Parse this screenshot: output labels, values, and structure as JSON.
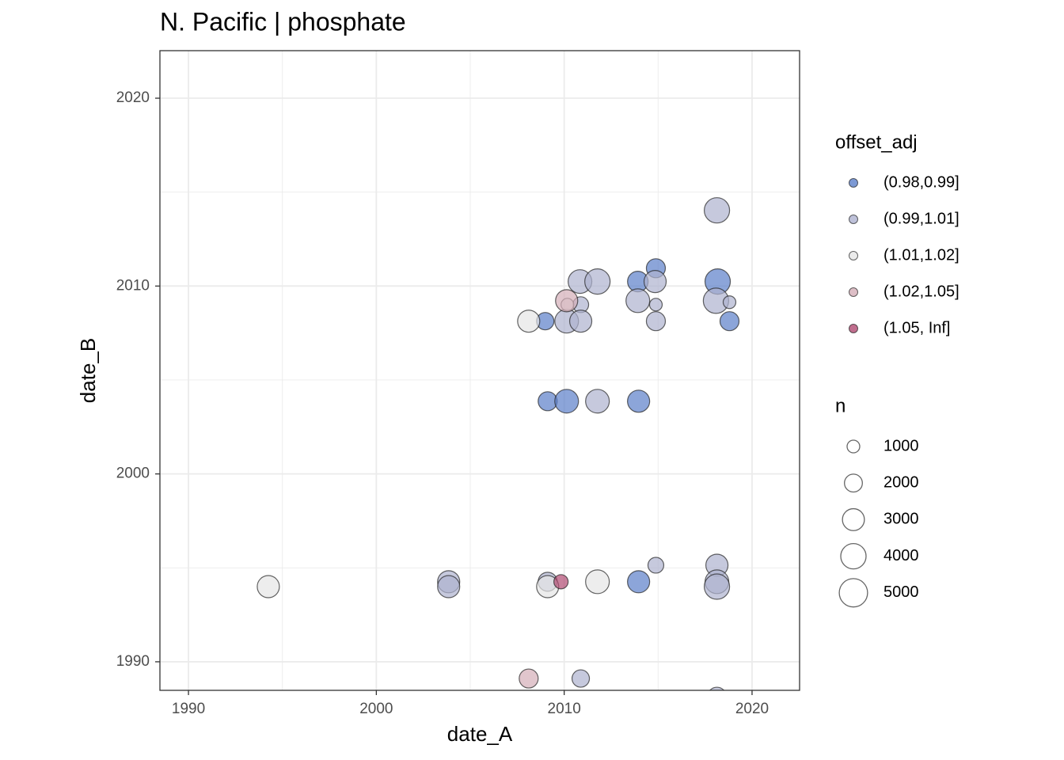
{
  "chart_data": {
    "type": "scatter",
    "title": "N. Pacific | phosphate",
    "xlabel": "date_A",
    "ylabel": "date_B",
    "xlim": [
      1988.48,
      2022.53
    ],
    "ylim": [
      1988.48,
      2022.53
    ],
    "xticks": [
      1990,
      2000,
      2010,
      2020
    ],
    "yticks": [
      1990,
      2000,
      2010,
      2020
    ],
    "xminor": [
      1995,
      2005,
      2015
    ],
    "yminor": [
      1995,
      2005,
      2015
    ],
    "grid": true,
    "legend_title": "offset_adj",
    "series": [
      {
        "name": "(0.98,0.99]",
        "color": "#5b7fc9",
        "x": [
          2008.99,
          2009.12,
          2010.13,
          2013.96,
          2013.92,
          2014.88,
          2018.17,
          2018.8,
          2013.96
        ],
        "y": [
          2008.13,
          2003.87,
          2003.87,
          2003.87,
          2010.24,
          2010.95,
          2010.24,
          2008.13,
          1994.26
        ],
        "sizes": [
          1890,
          2250,
          3500,
          3060,
          2640,
          2250,
          4000,
          2250,
          3060
        ]
      },
      {
        "name": "(0.99,1.01]",
        "color": "#aeb2cf",
        "x": [
          2018.13,
          2010.84,
          2011.77,
          2014.84,
          2010.88,
          2013.92,
          2014.88,
          2018.08,
          2018.8,
          2010.13,
          2010.88,
          2014.88,
          2011.77,
          2003.85,
          2003.85,
          2009.12,
          2014.88,
          2018.13,
          2018.13,
          2018.13,
          2010.88,
          2018.13
        ],
        "y": [
          2014.03,
          2010.24,
          2010.24,
          2010.24,
          2009.01,
          2009.22,
          2009.01,
          2009.22,
          2009.14,
          2008.13,
          2008.13,
          2008.13,
          2003.87,
          1994.26,
          1994.0,
          1994.26,
          1995.14,
          1995.14,
          1994.26,
          1994.0,
          1989.11,
          1988.14
        ],
        "sizes": [
          4000,
          3500,
          4000,
          3060,
          1560,
          3500,
          1000,
          4000,
          1000,
          3500,
          3060,
          2250,
          3500,
          3060,
          3060,
          2250,
          1560,
          3060,
          3500,
          4000,
          1890,
          2250
        ]
      },
      {
        "name": "(1.01,1.02]",
        "color": "#e6e6e6",
        "x": [
          1994.25,
          2008.11,
          2009.12,
          2011.77,
          2010.17
        ],
        "y": [
          1994.0,
          2008.13,
          1994.0,
          1994.26,
          2009.01
        ],
        "sizes": [
          3060,
          3060,
          3060,
          3500,
          1000
        ]
      },
      {
        "name": "(1.02,1.05]",
        "color": "#d4aeb8",
        "x": [
          2010.13,
          2008.11
        ],
        "y": [
          2009.22,
          1989.11
        ],
        "sizes": [
          3060,
          2250
        ]
      },
      {
        "name": "(1.05, Inf]",
        "color": "#b04a72",
        "x": [
          2009.83
        ],
        "y": [
          1994.26
        ],
        "sizes": [
          1270
        ]
      }
    ],
    "size_legend": {
      "title": "n",
      "values": [
        1000,
        2000,
        3000,
        4000,
        5000
      ]
    }
  }
}
